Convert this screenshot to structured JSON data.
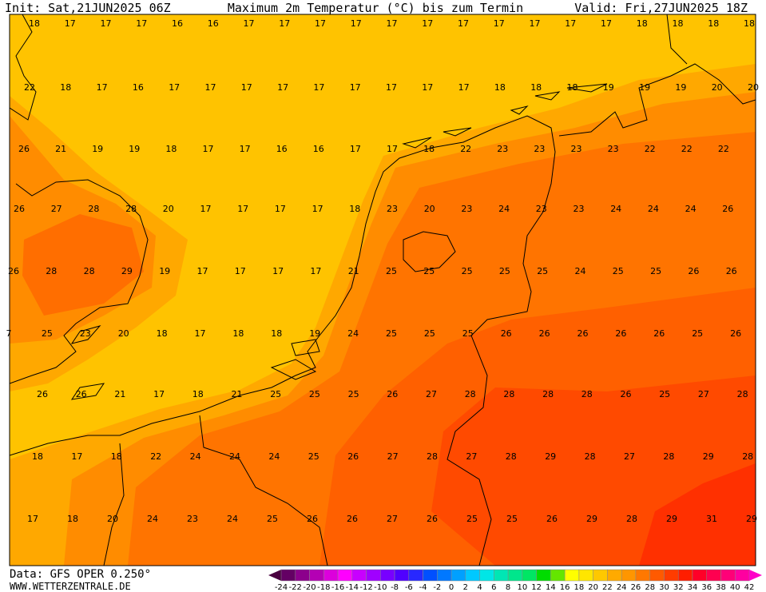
{
  "header": {
    "init": "Init: Sat,21JUN2025 06Z",
    "title": "Maximum 2m Temperatur (°C) bis zum Termin",
    "valid": "Valid: Fri,27JUN2025 18Z"
  },
  "map": {
    "rows": [
      [
        18,
        17,
        17,
        17,
        16,
        16,
        17,
        17,
        17,
        17,
        17,
        17,
        17,
        17,
        17,
        17,
        17,
        18,
        18,
        18,
        18
      ],
      [
        22,
        18,
        17,
        16,
        17,
        17,
        17,
        17,
        17,
        17,
        17,
        17,
        17,
        18,
        18,
        18,
        19,
        19,
        19,
        20,
        20
      ],
      [
        26,
        21,
        19,
        19,
        18,
        17,
        17,
        16,
        16,
        17,
        17,
        18,
        22,
        23,
        23,
        23,
        23,
        22,
        22,
        22
      ],
      [
        26,
        27,
        28,
        28,
        20,
        17,
        17,
        17,
        17,
        18,
        23,
        20,
        23,
        24,
        23,
        23,
        24,
        24,
        24,
        26
      ],
      [
        26,
        28,
        28,
        29,
        19,
        17,
        17,
        17,
        17,
        21,
        25,
        25,
        25,
        25,
        25,
        24,
        25,
        25,
        26,
        26
      ],
      [
        7,
        25,
        23,
        20,
        18,
        17,
        18,
        18,
        19,
        24,
        25,
        25,
        25,
        26,
        26,
        26,
        26,
        26,
        25,
        26
      ],
      [
        26,
        26,
        21,
        17,
        18,
        21,
        25,
        25,
        25,
        26,
        27,
        28,
        28,
        28,
        28,
        26,
        25,
        27,
        28
      ],
      [
        18,
        17,
        18,
        22,
        24,
        24,
        24,
        25,
        26,
        27,
        28,
        27,
        28,
        29,
        28,
        27,
        28,
        29,
        28
      ],
      [
        17,
        18,
        20,
        24,
        23,
        24,
        25,
        26,
        26,
        27,
        26,
        25,
        25,
        26,
        29,
        28,
        29,
        31,
        29
      ]
    ]
  },
  "legend": {
    "levels": [
      -24,
      -22,
      -20,
      -18,
      -16,
      -14,
      -12,
      -10,
      -8,
      -6,
      -4,
      -2,
      0,
      2,
      4,
      6,
      8,
      10,
      12,
      14,
      16,
      18,
      20,
      22,
      24,
      26,
      28,
      30,
      32,
      34,
      36,
      38,
      40,
      42
    ],
    "colors": [
      "#4a0040",
      "#640064",
      "#8c008c",
      "#b400b4",
      "#dc00dc",
      "#ff00ff",
      "#c800ff",
      "#a000ff",
      "#7800ff",
      "#5000ff",
      "#2828ff",
      "#0050ff",
      "#0078ff",
      "#00a0ff",
      "#00c8ff",
      "#00e6e6",
      "#00e6b4",
      "#00e68c",
      "#00e664",
      "#00dc00",
      "#64e600",
      "#ffff00",
      "#ffe600",
      "#ffc800",
      "#ffaa00",
      "#ff9600",
      "#ff7800",
      "#ff5a00",
      "#ff3c00",
      "#ff1e00",
      "#ff0028",
      "#ff0050",
      "#ff0078",
      "#ff00a0",
      "#ff00c8"
    ]
  },
  "footer": {
    "data": "Data: GFS OPER 0.250°",
    "site": "WWW.WETTERZENTRALE.DE"
  }
}
